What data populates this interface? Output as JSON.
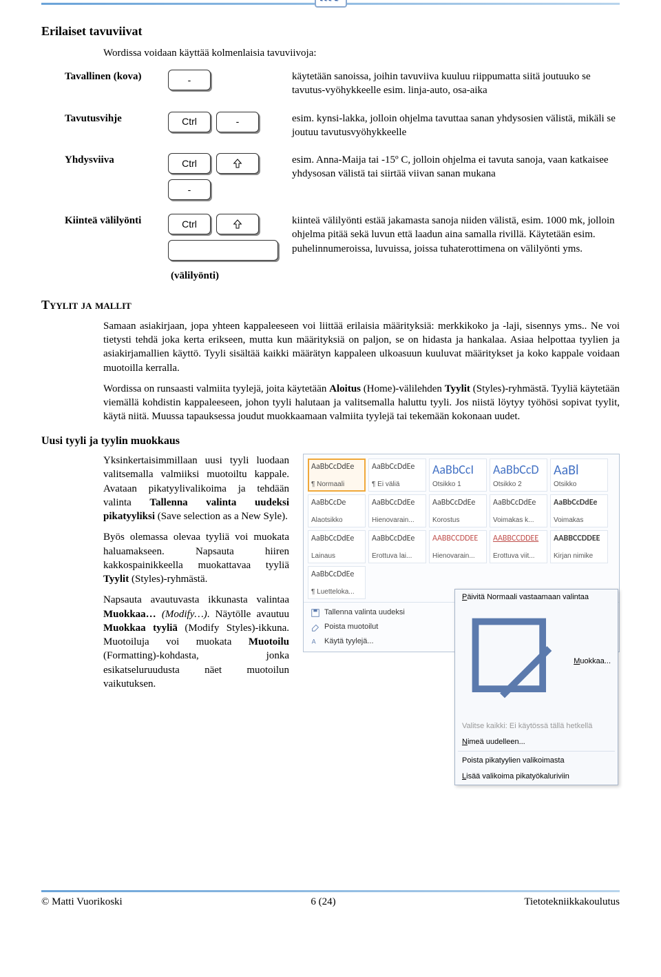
{
  "header": {
    "logo_text": "MV"
  },
  "section1": {
    "title": "Erilaiset tavuviivat",
    "intro": "Wordissa voidaan käyttää kolmenlaisia tavuviivoja:",
    "rows": {
      "tavallinen": {
        "label": "Tavallinen (kova)",
        "key1": "-",
        "desc": "käytetään sanoissa, joihin tavuviiva kuuluu riippumatta siitä joutuuko se tavutus-vyöhykkeelle esim. linja-auto, osa-aika"
      },
      "tavutusvihje": {
        "label": "Tavutusvihje",
        "key1": "Ctrl",
        "key2": "-",
        "desc": "esim. kynsi-lakka, jolloin ohjelma tavuttaa sanan yhdysosien välistä, mikäli se joutuu tavutusvyöhykkeelle"
      },
      "yhdysviiva": {
        "label": "Yhdysviiva",
        "key1": "Ctrl",
        "key3": "-",
        "desc": "esim. Anna-Maija tai -15º C, jolloin ohjelma ei tavuta sanoja, vaan katkaisee yhdysosan välistä tai siirtää viivan sanan mukana"
      },
      "kiintea": {
        "label": "Kiinteä välilyönti",
        "key1": "Ctrl",
        "space_caption": "(välilyönti)",
        "desc": "kiinteä välilyönti estää jakamasta sanoja niiden välistä, esim. 1000 mk, jolloin ohjelma pitää sekä luvun että laadun aina samalla rivillä. Käytetään esim. puhelinnumeroissa, luvuissa, joissa tuhaterottimena on välilyönti yms."
      }
    }
  },
  "section2": {
    "title": "Tyylit ja mallit",
    "para1": "Samaan asiakirjaan, jopa yhteen kappaleeseen voi liittää erilaisia määrityksiä: merkkikoko ja -laji, sisennys yms.. Ne voi tietysti tehdä joka kerta erikseen, mutta kun määrityksiä on paljon, se on hidasta ja hankalaa. Asiaa helpottaa tyylien ja asiakirjamallien käyttö. Tyyli sisältää kaikki määrätyn kappaleen ulkoasuun kuuluvat määritykset ja koko kappale voidaan muotoilla kerralla.",
    "para2": "Wordissa on runsaasti valmiita tyylejä, joita käytetään Aloitus (Home)-välilehden Tyylit (Styles)-ryhmästä. Tyyliä käytetään viemällä kohdistin kappaleeseen, johon tyyli halutaan ja valitsemalla haluttu tyyli. Jos niistä löytyy työhösi sopivat tyylit, käytä niitä. Muussa tapauksessa joudut muokkaamaan valmiita tyylejä tai tekemään kokonaan uudet."
  },
  "section3": {
    "title": "Uusi tyyli ja tyylin muokkaus",
    "p1": "Yksinkertaisimmillaan uusi tyyli luodaan valitsemalla valmiiksi muotoiltu kappale. Avataan pikatyylivalikoima ja tehdään valinta Tallenna valinta uudeksi pikatyyliksi (Save selection as a New Syle).",
    "p2": "Byös olemassa olevaa tyyliä voi muokata haluamakseen. Napsauta hiiren kakkospainikkeella muokattavaa tyyliä Tyylit (Styles)-ryhmästä.",
    "p3": "Napsauta avautuvasta ikkunasta valintaa Muokkaa… (Modify…). Näytölle avautuu Muokkaa tyyliä (Modify Styles)-ikkuna. Muotoiluja voi muokata Muotoilu (Formatting)-kohdasta, jonka esikatseluruudusta näet muotoilun vaikutuksen."
  },
  "gallery": {
    "cells": [
      {
        "sample": "AaBbCcDdEe",
        "label": "¶ Normaali",
        "cls": "",
        "sel": true
      },
      {
        "sample": "AaBbCcDdEe",
        "label": "¶ Ei väliä",
        "cls": ""
      },
      {
        "sample": "AaBbCcI",
        "label": "Otsikko 1",
        "cls": "h1s"
      },
      {
        "sample": "AaBbCcD",
        "label": "Otsikko 2",
        "cls": "h1s"
      },
      {
        "sample": "AaBl",
        "label": "Otsikko",
        "cls": "big"
      },
      {
        "sample": "AaBbCcDe",
        "label": "Alaotsikko",
        "cls": ""
      },
      {
        "sample": "AaBbCcDdEe",
        "label": "Hienovarain...",
        "cls": ""
      },
      {
        "sample": "AaBbCcDdEe",
        "label": "Korostus",
        "cls": ""
      },
      {
        "sample": "AaBbCcDdEe",
        "label": "Voimakas k...",
        "cls": ""
      },
      {
        "sample": "AaBbCcDdEe",
        "label": "Voimakas",
        "cls": "bold"
      },
      {
        "sample": "AaBbCcDdEe",
        "label": "Lainaus",
        "cls": ""
      },
      {
        "sample": "AaBbCcDdEe",
        "label": "Erottuva lai...",
        "cls": ""
      },
      {
        "sample": "AABBCCDDEE",
        "label": "Hienovarain...",
        "cls": "red"
      },
      {
        "sample": "AABBCCDDEE",
        "label": "Erottuva viit...",
        "cls": "red under"
      },
      {
        "sample": "AABBCCDDEE",
        "label": "Kirjan nimike",
        "cls": "bold"
      },
      {
        "sample": "AaBbCcDdEe",
        "label": "¶ Luetteloka...",
        "cls": ""
      }
    ],
    "menu": {
      "m1": "Tallenna valinta uudeksi",
      "m2": "Poista muotoilut",
      "m3": "Käytä tyylejä..."
    },
    "ctx": {
      "c1": "Päivitä Normaali vastaamaan valintaa",
      "c2": "Muokkaa...",
      "c3": "Valitse kaikki: Ei käytössä tällä hetkellä",
      "c4": "Nimeä uudelleen...",
      "c5": "Poista pikatyylien valikoimasta",
      "c6": "Lisää valikoima pikatyökaluriviin"
    }
  },
  "footer": {
    "left": "© Matti Vuorikoski",
    "center": "6 (24)",
    "right": "Tietotekniikkakoulutus"
  }
}
